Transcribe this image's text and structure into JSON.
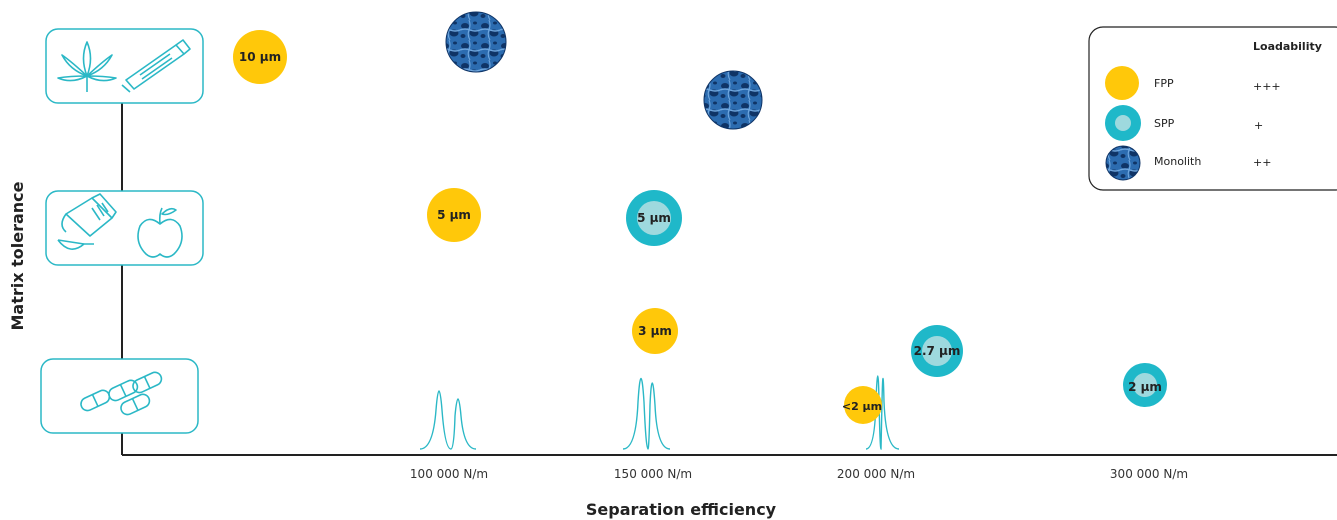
{
  "colors": {
    "fpp": "#FFC80A",
    "spp_ring": "#1FB8C9",
    "spp_core": "#9ED9DE",
    "monolith_dark": "#0F3466",
    "monolith_mid": "#2C6CB0",
    "monolith_light": "#6FA6DD",
    "icon_teal": "#2BB8C6",
    "axis": "#222222",
    "text": "#333333"
  },
  "chart_data": {
    "type": "scatter",
    "title": "",
    "xlabel": "Separation efficiency",
    "ylabel": "Matrix tolerance",
    "x_ticks": [
      "100 000 N/m",
      "150 000 N/m",
      "200 000 N/m",
      "300 000 N/m"
    ],
    "y_categories": [
      {
        "name": "matrix-level-high",
        "icons": [
          "cannabis-leaf-icon",
          "ointment-tube-icon"
        ]
      },
      {
        "name": "matrix-level-medium",
        "icons": [
          "syrup-bottle-spoon-icon",
          "apple-icon"
        ]
      },
      {
        "name": "matrix-level-low",
        "icons": [
          "capsules-icon"
        ]
      }
    ],
    "series": [
      {
        "name": "FPP",
        "points": [
          {
            "label": "10 µm",
            "x_tick_index": null,
            "level": "high"
          },
          {
            "label": "5 µm",
            "x_tick_index": 0,
            "level": "medium"
          },
          {
            "label": "3 µm",
            "x_tick_index": 1,
            "level": "low-upper"
          },
          {
            "label": "<2 µm",
            "x_tick_index": 2,
            "level": "low"
          }
        ]
      },
      {
        "name": "SPP",
        "points": [
          {
            "label": "5 µm",
            "x_tick_index": 1,
            "level": "medium"
          },
          {
            "label": "2.7 µm",
            "x_tick_index": 2,
            "level": "low-upper"
          },
          {
            "label": "2 µm",
            "x_tick_index": 3,
            "level": "low"
          }
        ]
      },
      {
        "name": "Monolith",
        "points": [
          {
            "label": "",
            "x_tick_index": 0,
            "level": "high-upper"
          },
          {
            "label": "",
            "x_tick_index": 1,
            "level": "high"
          }
        ]
      }
    ],
    "peak_pairs_at_ticks": [
      0,
      1,
      2
    ],
    "legend": {
      "header": "Loadability",
      "placement": "top-right",
      "entries": [
        {
          "name": "FPP",
          "loadability": "+++"
        },
        {
          "name": "SPP",
          "loadability": "+"
        },
        {
          "name": "Monolith",
          "loadability": "++"
        }
      ]
    },
    "grid": false
  }
}
